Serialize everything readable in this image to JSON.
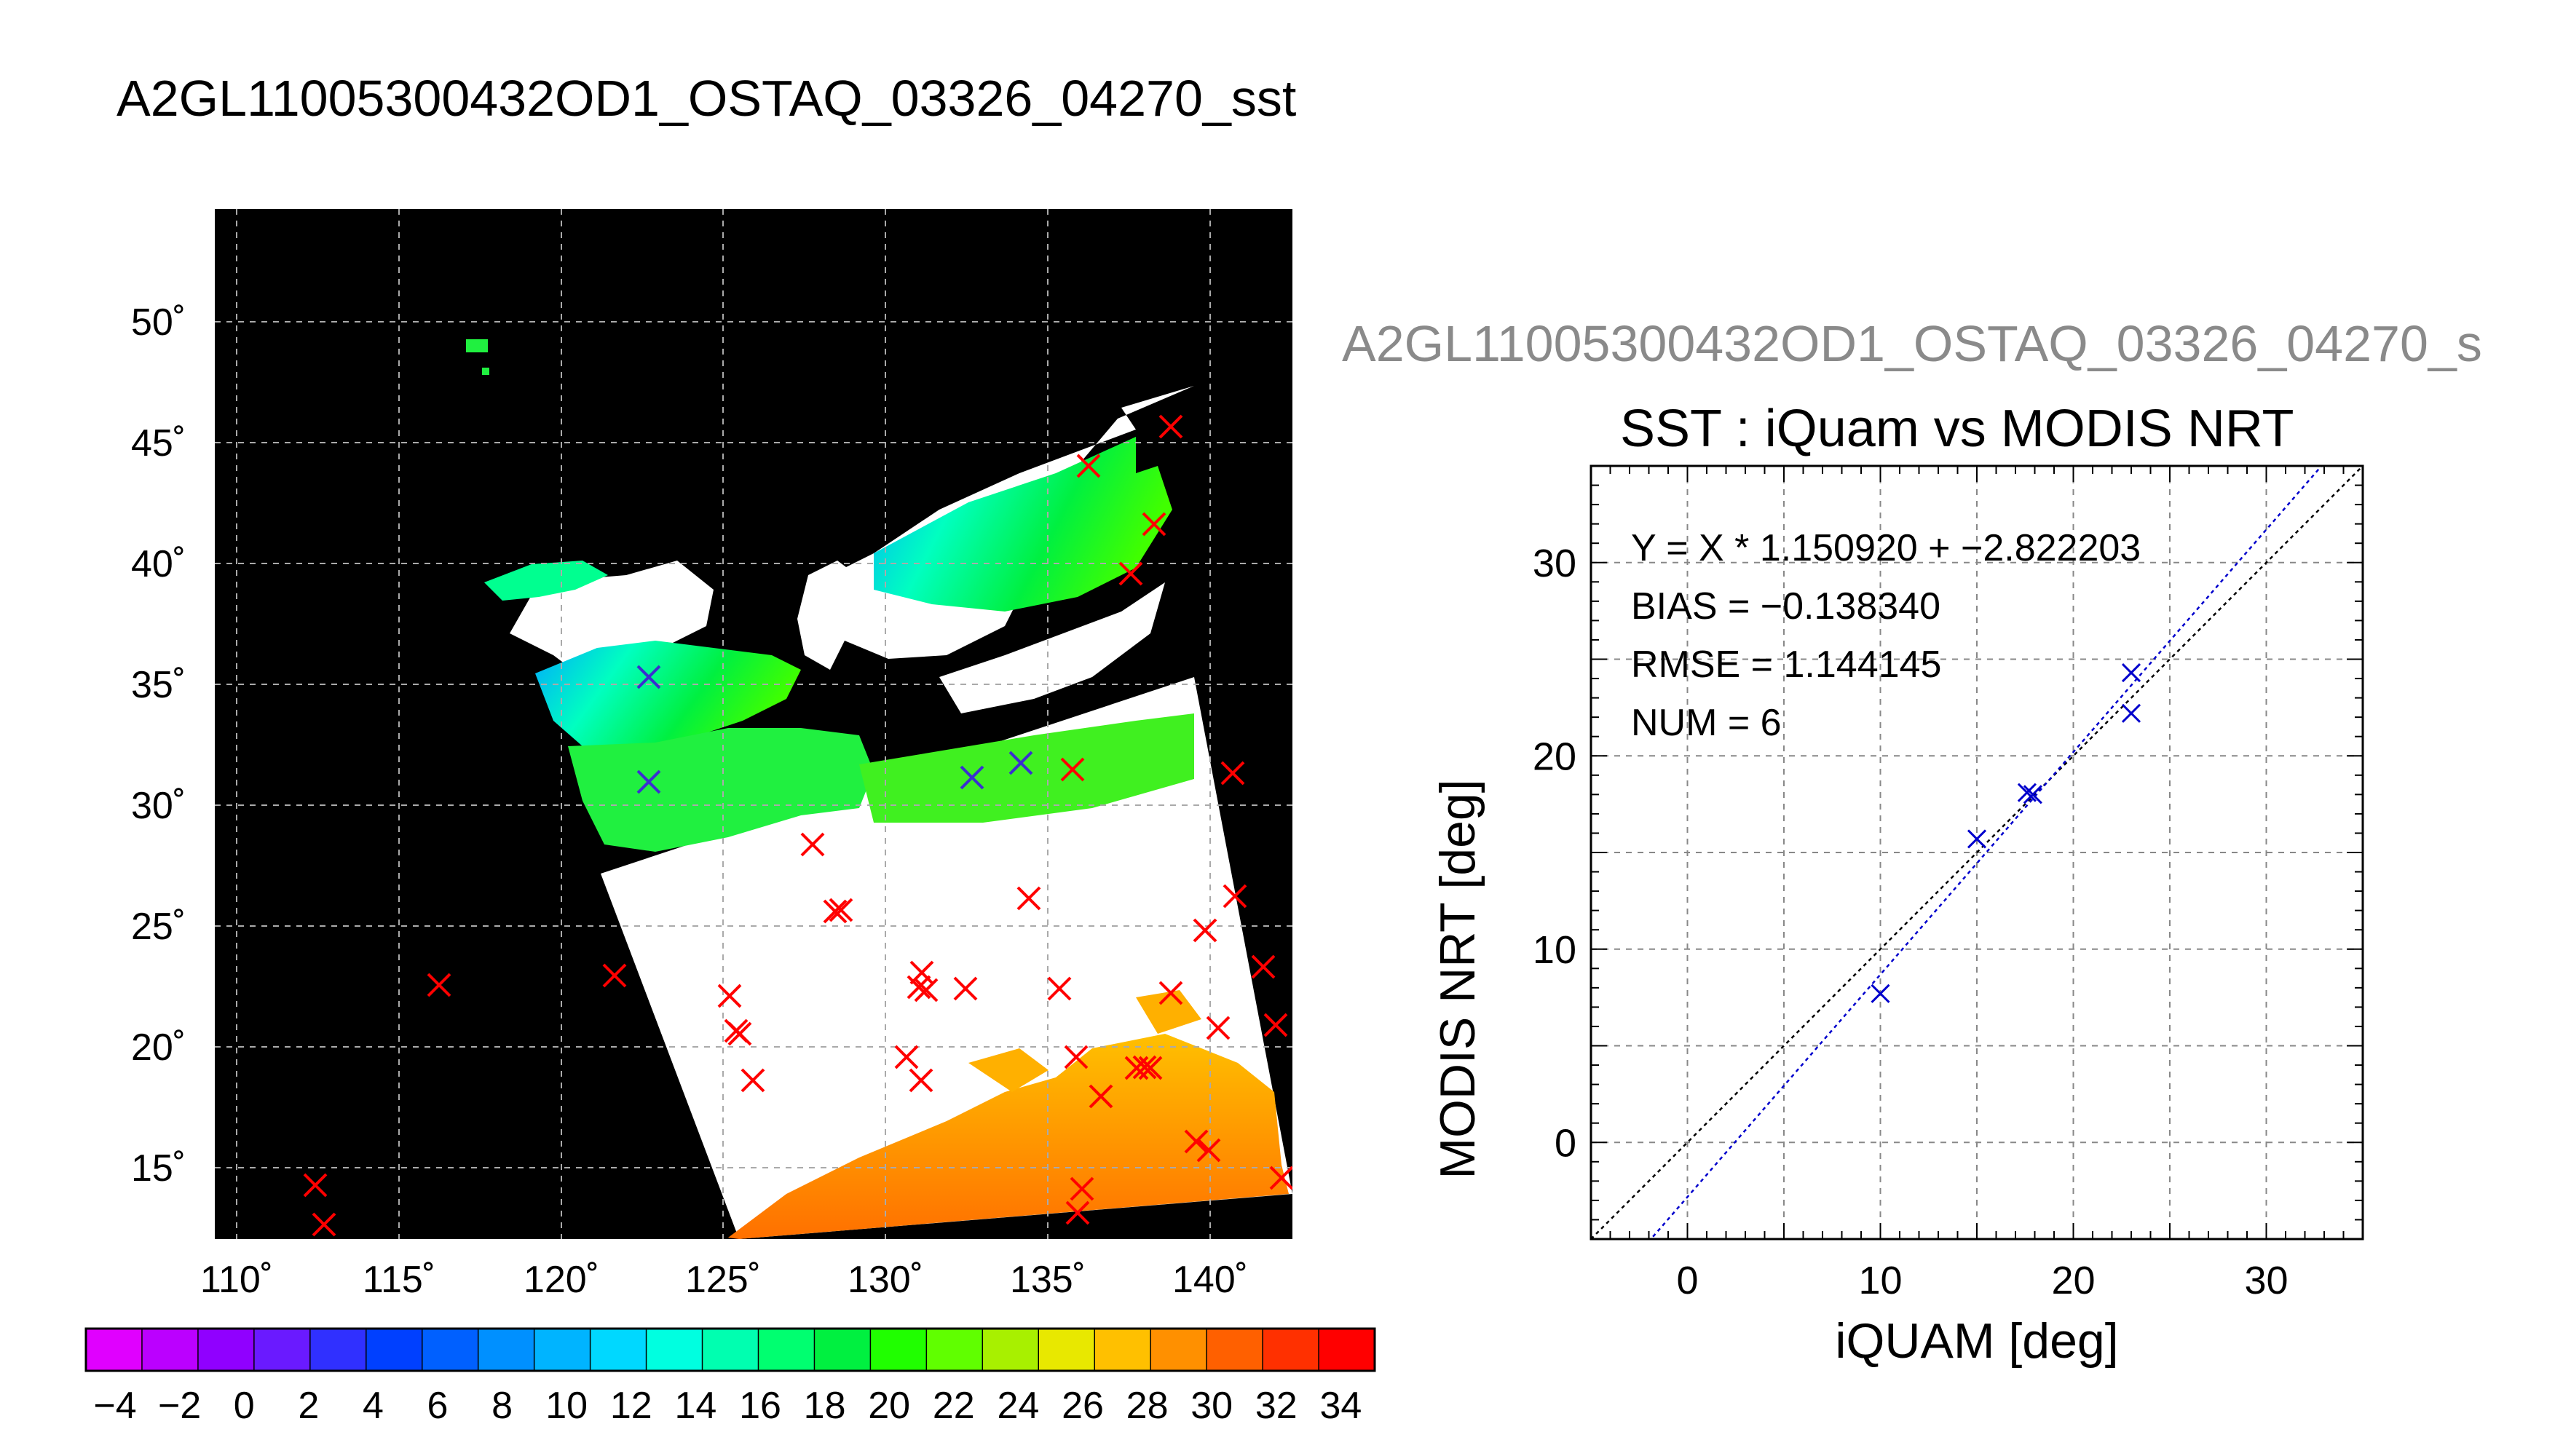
{
  "main_title": "A2GL11005300432OD1_OSTAQ_03326_04270_sst",
  "scatter_outer_title": "A2GL11005300432OD1_OSTAQ_03326_04270_s",
  "map": {
    "lat_ticks": [
      "15˚",
      "20˚",
      "25˚",
      "30˚",
      "35˚",
      "40˚",
      "45˚",
      "50˚"
    ],
    "lon_ticks": [
      "110˚",
      "115˚",
      "120˚",
      "125˚",
      "130˚",
      "135˚",
      "140˚"
    ],
    "background_color": "#000000",
    "land_color": "#ffffff",
    "marker_in_color": "#3a2fd0",
    "marker_out_color": "#ff0000"
  },
  "colorbar": {
    "labels": [
      "−4",
      "−2",
      "0",
      "2",
      "4",
      "6",
      "8",
      "10",
      "12",
      "14",
      "16",
      "18",
      "20",
      "22",
      "24",
      "26",
      "28",
      "30",
      "32",
      "34"
    ],
    "colors": [
      "#e000ff",
      "#bb00ff",
      "#9000ff",
      "#6a1aff",
      "#3030ff",
      "#0040ff",
      "#0060ff",
      "#0090ff",
      "#00b4ff",
      "#00d8ff",
      "#00ffe0",
      "#00ffb0",
      "#00ff70",
      "#00f040",
      "#20ff00",
      "#60ff00",
      "#a8f000",
      "#e8e800",
      "#ffc000",
      "#ff9000",
      "#ff6000",
      "#ff3000",
      "#ff0000"
    ]
  },
  "chart_data": {
    "type": "scatter",
    "title": "SST : iQuam vs MODIS NRT",
    "xlabel": "iQUAM [deg]",
    "ylabel": "MODIS NRT [deg]",
    "xlim": [
      -5,
      35
    ],
    "ylim": [
      -5,
      35
    ],
    "x_ticks": [
      "0",
      "10",
      "20",
      "30"
    ],
    "y_ticks": [
      "0",
      "10",
      "20",
      "30"
    ],
    "grid": true,
    "points": [
      {
        "x": 10.0,
        "y": 7.7
      },
      {
        "x": 15.0,
        "y": 15.7
      },
      {
        "x": 17.6,
        "y": 18.1
      },
      {
        "x": 17.9,
        "y": 18.0
      },
      {
        "x": 23.0,
        "y": 24.3
      },
      {
        "x": 23.0,
        "y": 22.2
      }
    ],
    "fit": {
      "slope": 1.15092,
      "intercept": -2.822203
    },
    "annotations": [
      "Y = X * 1.150920 + −2.822203",
      "BIAS = −0.138340",
      "RMSE = 1.144145",
      "NUM = 6"
    ],
    "colors": {
      "points": "#0000cc",
      "fit_line": "#0000cc",
      "one_to_one_line": "#000000"
    }
  }
}
